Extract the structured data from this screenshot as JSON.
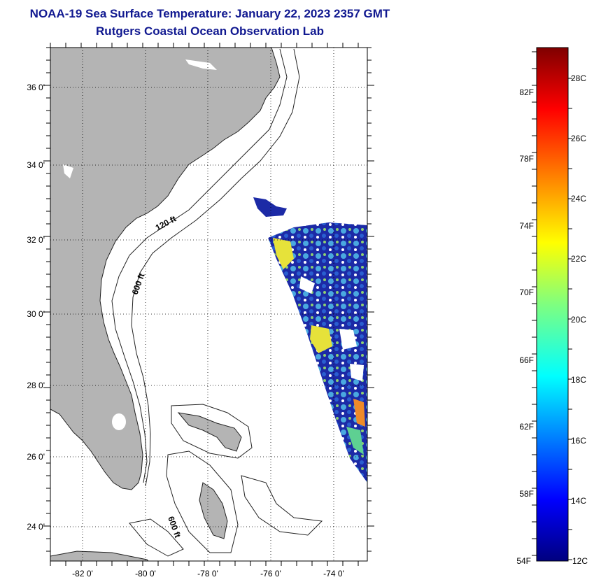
{
  "header": {
    "title": "NOAA-19 Sea Surface Temperature:  January 22, 2023 2357 GMT",
    "subtitle": "Rutgers Coastal Ocean Observation Lab"
  },
  "map": {
    "lat_labels": [
      "36 0'",
      "34 0'",
      "32 0'",
      "30 0'",
      "28 0'",
      "26 0'",
      "24 0'"
    ],
    "lon_labels": [
      "-82 0'",
      "-80 0'",
      "-78 0'",
      "-76 0'",
      "-74 0'"
    ],
    "contour_labels": [
      "120 ft",
      "600 ft",
      "600 ft"
    ],
    "colors": {
      "land": "#b4b4b4",
      "ocean": "#ffffff",
      "title": "#101890"
    }
  },
  "colorbar": {
    "f_labels": [
      "82F",
      "78F",
      "74F",
      "70F",
      "66F",
      "62F",
      "58F",
      "54F"
    ],
    "c_labels": [
      "28C",
      "26C",
      "24C",
      "22C",
      "20C",
      "18C",
      "16C",
      "14C",
      "12C"
    ]
  }
}
